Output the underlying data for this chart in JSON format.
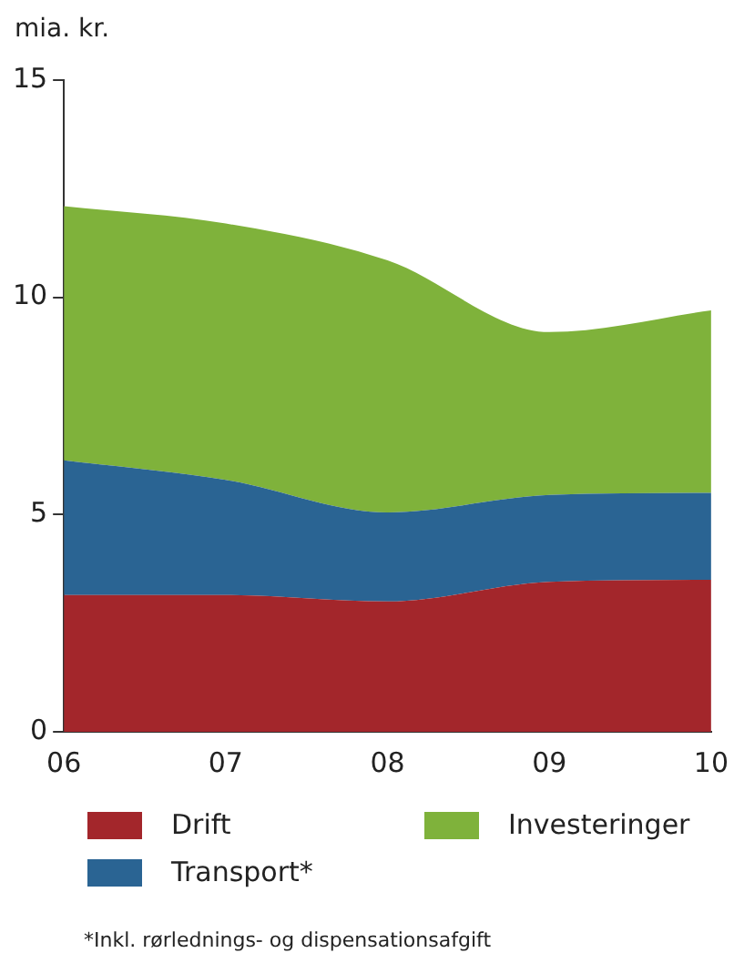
{
  "chart_data": {
    "type": "area",
    "stacked": true,
    "ylabel": "mia. kr.",
    "categories": [
      "06",
      "07",
      "08",
      "09",
      "10"
    ],
    "series": [
      {
        "name": "Drift",
        "color": "#a3262b",
        "values": [
          3.15,
          3.15,
          3.0,
          3.45,
          3.5
        ]
      },
      {
        "name": "Transport*",
        "color": "#2a6493",
        "values": [
          3.1,
          2.65,
          2.05,
          2.0,
          2.0
        ]
      },
      {
        "name": "Investeringer",
        "color": "#7fb23b",
        "values": [
          5.85,
          5.9,
          5.8,
          3.75,
          4.2
        ]
      }
    ],
    "ylim": [
      0,
      15
    ],
    "yticks": [
      0,
      5,
      10,
      15
    ],
    "grid": false,
    "legend": "bottom",
    "annotations": [
      "*Inkl. rørlednings- og dispensationsafgift"
    ]
  }
}
